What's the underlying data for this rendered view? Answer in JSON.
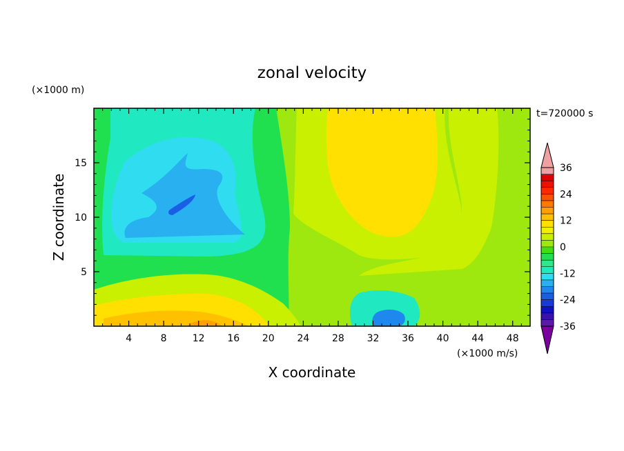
{
  "chart_data": {
    "type": "heatmap",
    "title": "zonal velocity",
    "xlabel": "X coordinate",
    "ylabel": "Z coordinate",
    "x_unit": "(×1000 m/s)",
    "y_unit": "(×1000 m)",
    "time_label": "t=720000 s",
    "xlim": [
      0,
      50
    ],
    "ylim": [
      0,
      20
    ],
    "x_ticks": [
      4,
      8,
      12,
      16,
      20,
      24,
      28,
      32,
      36,
      40,
      44,
      48
    ],
    "y_ticks": [
      5,
      10,
      15
    ],
    "colorbar": {
      "levels": [
        -42,
        -39,
        -36,
        -33,
        -30,
        -27,
        -24,
        -21,
        -18,
        -15,
        -12,
        -9,
        -6,
        -3,
        0,
        3,
        6,
        9,
        12,
        15,
        18,
        21,
        24,
        27,
        30,
        33,
        36,
        39,
        42
      ],
      "tick_labels": [
        "36",
        "24",
        "12",
        "0",
        "-12",
        "-24",
        "-36"
      ],
      "tick_values": [
        36,
        24,
        12,
        0,
        -12,
        -24,
        -36
      ],
      "colors": [
        "#7a00a0",
        "#5c1aa8",
        "#3a10b0",
        "#1010c8",
        "#1a3ad8",
        "#1a5ee6",
        "#1e88ee",
        "#28b0f0",
        "#30dcf0",
        "#20e8c0",
        "#30e88a",
        "#20e050",
        "#40e010",
        "#9ee810",
        "#c8f000",
        "#eef000",
        "#ffe000",
        "#ffc000",
        "#ffa000",
        "#ff7800",
        "#ff5000",
        "#ff2800",
        "#f01000",
        "#e00000",
        "#f0a0a0"
      ]
    },
    "field_regions": [
      {
        "name": "background",
        "level": -4
      },
      {
        "name": "left-band",
        "level": -6
      },
      {
        "name": "upper-left-cyan",
        "level": -10
      },
      {
        "name": "mid-cyan",
        "level": -13
      },
      {
        "name": "blue-blob",
        "level": -17
      },
      {
        "name": "dark-blue-core",
        "level": -22
      },
      {
        "name": "green-band-right",
        "level": 2
      },
      {
        "name": "green-band-right2",
        "level": 4
      },
      {
        "name": "yellow-green-zone",
        "level": 9
      },
      {
        "name": "right-green",
        "level": 3
      },
      {
        "name": "lower-cyan",
        "level": -11
      },
      {
        "name": "lower-blue",
        "level": -19
      },
      {
        "name": "bottom-green",
        "level": 3
      },
      {
        "name": "bottom-yellowgreen",
        "level": 9
      },
      {
        "name": "bottom-yellow",
        "level": 14
      },
      {
        "name": "bottom-orange",
        "level": 17
      }
    ]
  }
}
